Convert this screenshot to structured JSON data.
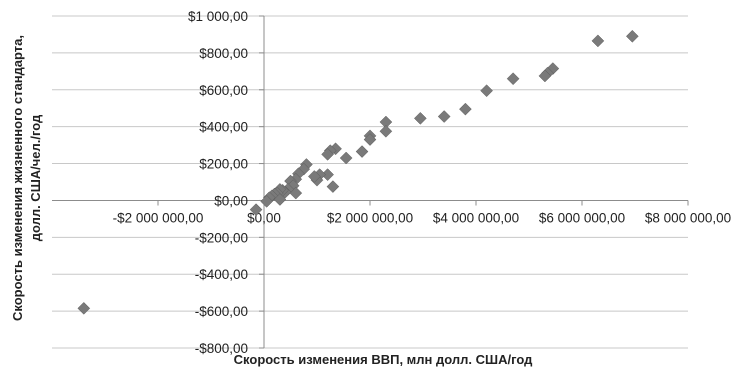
{
  "chart_data": {
    "type": "scatter",
    "xlabel": "Скорость изменения ВВП, млн долл. США/год",
    "ylabel_line1": "Скорость изменения жизненного стандарта,",
    "ylabel_line2": "долл. США/чел./год",
    "xlim": [
      -4000000,
      8000000
    ],
    "ylim": [
      -800,
      1000
    ],
    "x_ticks": [
      {
        "value": -2000000,
        "label": "-$2 000 000,00"
      },
      {
        "value": 0,
        "label": "$0,00"
      },
      {
        "value": 2000000,
        "label": "$2 000 000,00"
      },
      {
        "value": 4000000,
        "label": "$4 000 000,00"
      },
      {
        "value": 6000000,
        "label": "$6 000 000,00"
      },
      {
        "value": 8000000,
        "label": "$8 000 000,00"
      }
    ],
    "y_ticks": [
      {
        "value": 1000,
        "label": "$1 000,00"
      },
      {
        "value": 800,
        "label": "$800,00"
      },
      {
        "value": 600,
        "label": "$600,00"
      },
      {
        "value": 400,
        "label": "$400,00"
      },
      {
        "value": 200,
        "label": "$200,00"
      },
      {
        "value": 0,
        "label": "$0,00"
      },
      {
        "value": -200,
        "label": "-$200,00"
      },
      {
        "value": -400,
        "label": "-$400,00"
      },
      {
        "value": -600,
        "label": "-$600,00"
      },
      {
        "value": -800,
        "label": "-$800,00"
      }
    ],
    "grid": "horizontal",
    "marker_color": "#7a7a7a",
    "marker_shape": "diamond",
    "points": [
      [
        6950000,
        890
      ],
      [
        6300000,
        865
      ],
      [
        5450000,
        715
      ],
      [
        5350000,
        690
      ],
      [
        5300000,
        675
      ],
      [
        4700000,
        660
      ],
      [
        4200000,
        595
      ],
      [
        3800000,
        495
      ],
      [
        3400000,
        455
      ],
      [
        2950000,
        445
      ],
      [
        2300000,
        425
      ],
      [
        2300000,
        375
      ],
      [
        2000000,
        350
      ],
      [
        2000000,
        330
      ],
      [
        1850000,
        265
      ],
      [
        1550000,
        230
      ],
      [
        1350000,
        280
      ],
      [
        1250000,
        270
      ],
      [
        1200000,
        250
      ],
      [
        1200000,
        140
      ],
      [
        1300000,
        75
      ],
      [
        1050000,
        140
      ],
      [
        1000000,
        110
      ],
      [
        950000,
        130
      ],
      [
        800000,
        195
      ],
      [
        750000,
        170
      ],
      [
        650000,
        145
      ],
      [
        600000,
        115
      ],
      [
        500000,
        105
      ],
      [
        550000,
        80
      ],
      [
        600000,
        40
      ],
      [
        450000,
        60
      ],
      [
        400000,
        45
      ],
      [
        350000,
        55
      ],
      [
        300000,
        60
      ],
      [
        250000,
        40
      ],
      [
        200000,
        35
      ],
      [
        150000,
        25
      ],
      [
        100000,
        15
      ],
      [
        300000,
        5
      ],
      [
        50000,
        -5
      ],
      [
        -150000,
        -50
      ],
      [
        -3400000,
        -585
      ]
    ]
  }
}
